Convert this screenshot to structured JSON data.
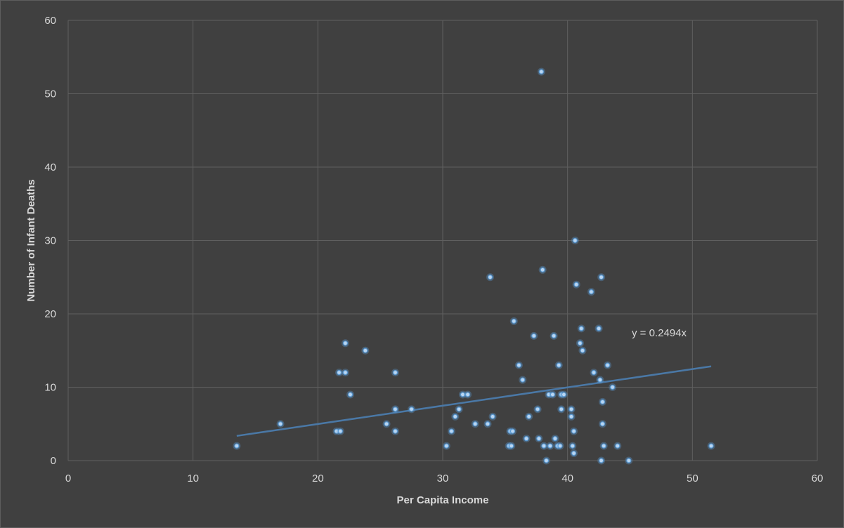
{
  "chart_data": {
    "type": "scatter",
    "title": "",
    "xlabel": "Per Capita Income",
    "ylabel": "Number of Infant Deaths",
    "xlim": [
      0,
      60
    ],
    "ylim": [
      0,
      60
    ],
    "x_ticks": [
      0,
      10,
      20,
      30,
      40,
      50,
      60
    ],
    "y_ticks": [
      0,
      10,
      20,
      30,
      40,
      50,
      60
    ],
    "x_tick_labels": [
      "0",
      "10",
      "20",
      "30",
      "40",
      "50",
      "60"
    ],
    "y_tick_labels": [
      "0",
      "10",
      "20",
      "30",
      "40",
      "50",
      "60"
    ],
    "grid": true,
    "legend": "none",
    "marker_color": "#5b9bd5",
    "trendline": {
      "type": "linear",
      "color": "#4a78a6",
      "slope": 0.2494,
      "x_range": [
        13.5,
        51.5
      ],
      "equation_label": "y = 0.2494x"
    },
    "points": [
      {
        "x": 13.5,
        "y": 2
      },
      {
        "x": 17.0,
        "y": 5
      },
      {
        "x": 21.5,
        "y": 4
      },
      {
        "x": 21.8,
        "y": 4
      },
      {
        "x": 21.7,
        "y": 12
      },
      {
        "x": 22.2,
        "y": 12
      },
      {
        "x": 22.2,
        "y": 16
      },
      {
        "x": 22.6,
        "y": 9
      },
      {
        "x": 23.8,
        "y": 15
      },
      {
        "x": 25.5,
        "y": 5
      },
      {
        "x": 26.2,
        "y": 4
      },
      {
        "x": 26.2,
        "y": 7
      },
      {
        "x": 26.2,
        "y": 12
      },
      {
        "x": 27.5,
        "y": 7
      },
      {
        "x": 30.3,
        "y": 2
      },
      {
        "x": 30.7,
        "y": 4
      },
      {
        "x": 31.0,
        "y": 6
      },
      {
        "x": 31.3,
        "y": 7
      },
      {
        "x": 31.6,
        "y": 9
      },
      {
        "x": 32.0,
        "y": 9
      },
      {
        "x": 32.6,
        "y": 5
      },
      {
        "x": 33.6,
        "y": 5
      },
      {
        "x": 34.0,
        "y": 6
      },
      {
        "x": 33.8,
        "y": 25
      },
      {
        "x": 35.3,
        "y": 2
      },
      {
        "x": 35.5,
        "y": 2
      },
      {
        "x": 35.4,
        "y": 4
      },
      {
        "x": 35.6,
        "y": 4
      },
      {
        "x": 35.7,
        "y": 19
      },
      {
        "x": 36.1,
        "y": 13
      },
      {
        "x": 36.4,
        "y": 11
      },
      {
        "x": 36.7,
        "y": 3
      },
      {
        "x": 36.9,
        "y": 6
      },
      {
        "x": 37.3,
        "y": 17
      },
      {
        "x": 37.6,
        "y": 7
      },
      {
        "x": 37.7,
        "y": 3
      },
      {
        "x": 38.0,
        "y": 26
      },
      {
        "x": 37.9,
        "y": 53
      },
      {
        "x": 38.1,
        "y": 2
      },
      {
        "x": 38.3,
        "y": 0
      },
      {
        "x": 38.6,
        "y": 2
      },
      {
        "x": 38.5,
        "y": 9
      },
      {
        "x": 38.8,
        "y": 9
      },
      {
        "x": 38.9,
        "y": 17
      },
      {
        "x": 39.0,
        "y": 3
      },
      {
        "x": 39.2,
        "y": 2
      },
      {
        "x": 39.4,
        "y": 2
      },
      {
        "x": 39.3,
        "y": 13
      },
      {
        "x": 39.5,
        "y": 7
      },
      {
        "x": 39.5,
        "y": 9
      },
      {
        "x": 39.7,
        "y": 9
      },
      {
        "x": 40.3,
        "y": 7
      },
      {
        "x": 40.3,
        "y": 6
      },
      {
        "x": 40.4,
        "y": 2
      },
      {
        "x": 40.5,
        "y": 4
      },
      {
        "x": 40.5,
        "y": 1
      },
      {
        "x": 40.6,
        "y": 30
      },
      {
        "x": 40.7,
        "y": 24
      },
      {
        "x": 41.0,
        "y": 16
      },
      {
        "x": 41.1,
        "y": 18
      },
      {
        "x": 41.2,
        "y": 15
      },
      {
        "x": 41.9,
        "y": 23
      },
      {
        "x": 42.1,
        "y": 12
      },
      {
        "x": 42.5,
        "y": 18
      },
      {
        "x": 42.7,
        "y": 25
      },
      {
        "x": 42.6,
        "y": 11
      },
      {
        "x": 42.7,
        "y": 0
      },
      {
        "x": 42.8,
        "y": 8
      },
      {
        "x": 42.8,
        "y": 5
      },
      {
        "x": 42.9,
        "y": 2
      },
      {
        "x": 43.2,
        "y": 13
      },
      {
        "x": 43.6,
        "y": 10
      },
      {
        "x": 44.0,
        "y": 2
      },
      {
        "x": 44.9,
        "y": 0
      },
      {
        "x": 51.5,
        "y": 2
      }
    ]
  }
}
